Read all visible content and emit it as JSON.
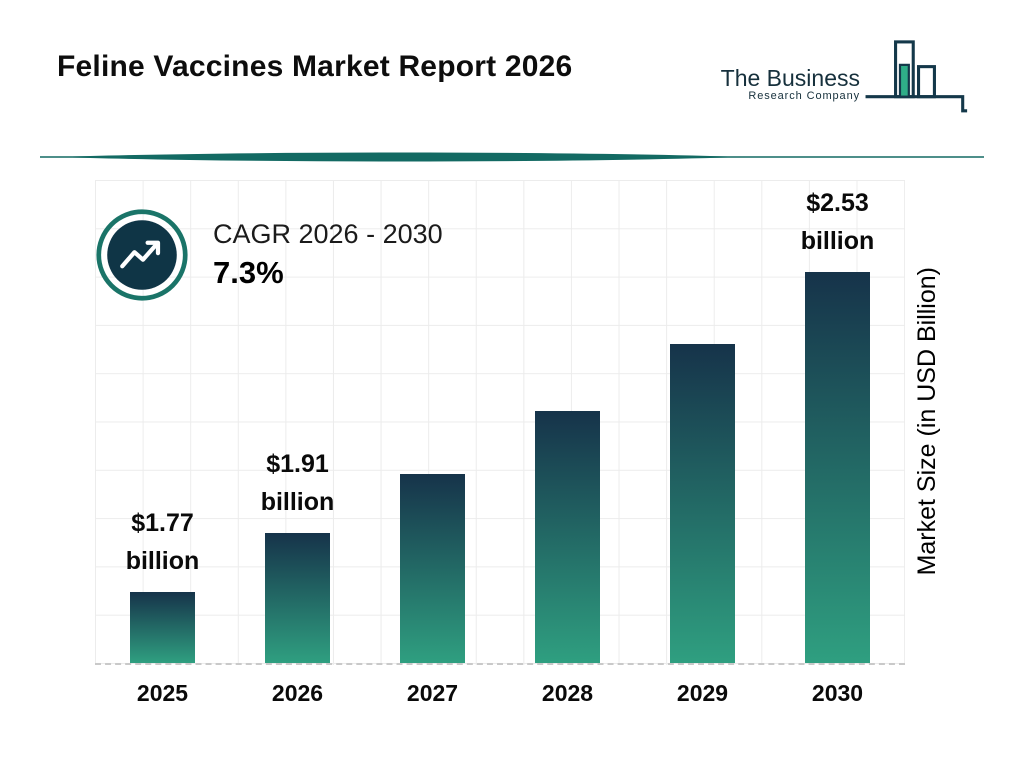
{
  "header": {
    "title": "Feline Vaccines Market Report 2026",
    "logo": {
      "line1": "The Business",
      "line2": "Research Company"
    }
  },
  "cagr": {
    "label": "CAGR 2026 - 2030",
    "value": "7.3%"
  },
  "chart_data": {
    "type": "bar",
    "title": "Feline Vaccines Market Report 2026",
    "categories": [
      "2025",
      "2026",
      "2027",
      "2028",
      "2029",
      "2030"
    ],
    "values": [
      1.77,
      1.91,
      2.05,
      2.2,
      2.36,
      2.53
    ],
    "bar_labels": [
      {
        "amount": "$1.77",
        "unit": "billion"
      },
      {
        "amount": "$1.91",
        "unit": "billion"
      },
      null,
      null,
      null,
      {
        "amount": "$2.53",
        "unit": "billion"
      }
    ],
    "xlabel": "",
    "ylabel": "Market Size (in USD Billion)",
    "ylim": [
      1.6,
      2.6
    ],
    "grid": true,
    "legend": false
  },
  "colors": {
    "bar_top": "#16334a",
    "bar_bottom": "#2f9f80",
    "divider": "#136a63",
    "logo_dark": "#14384a",
    "logo_green": "#2fae88",
    "cagr_circle": "#0f3546",
    "cagr_ring": "#1a7468"
  }
}
